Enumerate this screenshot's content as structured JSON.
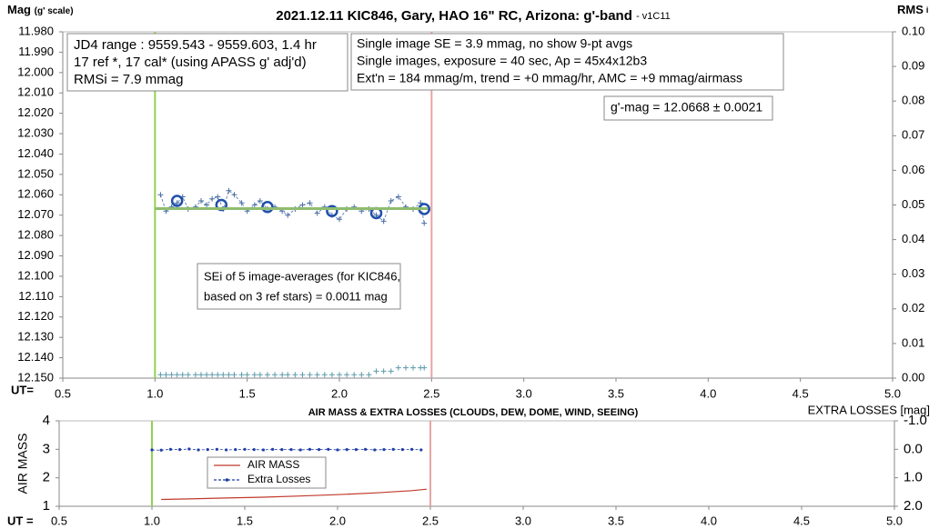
{
  "chart_data": [
    {
      "type": "line",
      "title": "2021.12.11 KIC846, Gary, HAO 16\" RC, Arizona: g'-band",
      "version": "- v1C11",
      "ylabel": "Mag",
      "ylabel_note": "(g' scale)",
      "y2label": "RMS",
      "y2label_sub": "i",
      "xlabel": "UT=",
      "xlim": [
        0.5,
        5.0
      ],
      "xticks": [
        0.5,
        {
          "value": 1.0,
          "label": "1.0"
        },
        1.5,
        {
          "value": 2.0,
          "label": "2.0"
        },
        2.5,
        {
          "value": 3.0,
          "label": "3.0"
        },
        3.5,
        {
          "value": 4.0,
          "label": "4.0"
        },
        4.5,
        {
          "value": 5.0,
          "label": "5.0"
        }
      ],
      "ylim": [
        12.15,
        11.98
      ],
      "yticks": [
        {
          "value": 11.98,
          "label": "11.980"
        },
        {
          "value": 11.99,
          "label": "11.990"
        },
        {
          "value": 12.0,
          "label": "12.000"
        },
        {
          "value": 12.01,
          "label": "12.010"
        },
        {
          "value": 12.02,
          "label": "12.020"
        },
        {
          "value": 12.03,
          "label": "12.030"
        },
        {
          "value": 12.04,
          "label": "12.040"
        },
        {
          "value": 12.05,
          "label": "12.050"
        },
        {
          "value": 12.06,
          "label": "12.060"
        },
        {
          "value": 12.07,
          "label": "12.070"
        },
        {
          "value": 12.08,
          "label": "12.080"
        },
        {
          "value": 12.09,
          "label": "12.090"
        },
        {
          "value": 12.1,
          "label": "12.100"
        },
        {
          "value": 12.11,
          "label": "12.110"
        },
        {
          "value": 12.12,
          "label": "12.120"
        },
        {
          "value": 12.13,
          "label": "12.130"
        },
        {
          "value": 12.14,
          "label": "12.140"
        },
        {
          "value": 12.15,
          "label": "12.150"
        }
      ],
      "y2lim": [
        0,
        0.1
      ],
      "y2ticks": [
        {
          "value": 0,
          "label": "0.00"
        },
        0.01,
        0.02,
        0.03,
        0.04,
        0.05,
        0.06,
        0.07,
        0.08,
        0.09,
        {
          "value": 0.1,
          "label": "0.10"
        }
      ],
      "vlines": [
        {
          "value": 1.0,
          "color": "#92d050"
        },
        {
          "value": 2.5,
          "color": "#e8a3a3"
        }
      ],
      "series": [
        {
          "marker": "plus",
          "line": "dashed",
          "color": "#4a6fa5",
          "x": [
            1.03,
            1.06,
            1.09,
            1.12,
            1.15,
            1.18,
            1.22,
            1.25,
            1.28,
            1.31,
            1.34,
            1.37,
            1.4,
            1.43,
            1.47,
            1.5,
            1.54,
            1.57,
            1.61,
            1.65,
            1.69,
            1.72,
            1.76,
            1.8,
            1.84,
            1.88,
            1.92,
            1.96,
            2.0,
            2.04,
            2.08,
            2.12,
            2.16,
            2.2,
            2.24,
            2.28,
            2.32,
            2.36,
            2.4,
            2.44,
            2.46
          ],
          "values": [
            12.06,
            12.068,
            12.066,
            12.064,
            12.061,
            12.067,
            12.066,
            12.063,
            12.065,
            12.062,
            12.061,
            12.067,
            12.058,
            12.06,
            12.064,
            12.068,
            12.065,
            12.063,
            12.067,
            12.066,
            12.068,
            12.07,
            12.067,
            12.065,
            12.064,
            12.069,
            12.066,
            12.07,
            12.072,
            12.067,
            12.066,
            12.068,
            12.067,
            12.07,
            12.073,
            12.063,
            12.061,
            12.066,
            12.067,
            12.064,
            12.074
          ]
        },
        {
          "marker": "circle",
          "color": "#1f4faa",
          "x": [
            1.12,
            1.36,
            1.61,
            1.96,
            2.2,
            2.46
          ],
          "values": [
            12.063,
            12.065,
            12.066,
            12.068,
            12.069,
            12.067
          ]
        },
        {
          "marker": "none",
          "line": "solid",
          "color": "#8fbc6f",
          "x": [
            1.0,
            2.48
          ],
          "values": [
            12.0668,
            12.0668
          ]
        },
        {
          "marker": "plus",
          "color": "#5b9aaa",
          "axis": "y2",
          "x": [
            1.03,
            1.06,
            1.09,
            1.12,
            1.15,
            1.18,
            1.22,
            1.25,
            1.28,
            1.31,
            1.34,
            1.37,
            1.4,
            1.43,
            1.47,
            1.5,
            1.54,
            1.57,
            1.61,
            1.65,
            1.69,
            1.72,
            1.76,
            1.8,
            1.84,
            1.88,
            1.92,
            1.96,
            2.0,
            2.04,
            2.08,
            2.12,
            2.16,
            2.2,
            2.24,
            2.28,
            2.32,
            2.36,
            2.4,
            2.44,
            2.46
          ],
          "values": [
            0.001,
            0.001,
            0.001,
            0.001,
            0.001,
            0.001,
            0.001,
            0.001,
            0.001,
            0.001,
            0.001,
            0.001,
            0.001,
            0.001,
            0.001,
            0.001,
            0.001,
            0.001,
            0.001,
            0.001,
            0.001,
            0.001,
            0.001,
            0.001,
            0.001,
            0.001,
            0.001,
            0.001,
            0.001,
            0.001,
            0.001,
            0.001,
            0.001,
            0.002,
            0.002,
            0.002,
            0.003,
            0.003,
            0.003,
            0.003,
            0.003
          ]
        }
      ],
      "annotations": [
        {
          "lines": [
            "JD4 range : 9559.543 - 9559.603,  1.4  hr",
            "17 ref *, 17 cal* (using APASS g' adj'd)",
            "RMSi = 7.9 mmag"
          ]
        },
        {
          "lines": [
            "Single image SE = 3.9 mmag, no show  9-pt avgs",
            "Single images, exposure = 40 sec, Ap = 45x4x12b3",
            "Ext'n = 184 mmag/m, trend = +0 mmag/hr, AMC = +9 mmag/airmass"
          ]
        },
        {
          "lines": [
            "g'-mag = 12.0668 ± 0.0021"
          ]
        },
        {
          "lines": [
            "SEi of 5 image-averages (for KIC846,",
            "based on 3 ref stars) = 0.0011 mag"
          ]
        }
      ]
    },
    {
      "type": "line",
      "title": "AIR MASS & EXTRA LOSSES (CLOUDS, DEW, DOME, WIND, SEEING)",
      "ylabel": "AIR MASS",
      "y2label": "EXTRA LOSSES [mag]",
      "xlabel": "UT =",
      "xlim": [
        0.5,
        5.0
      ],
      "xticks": [
        0.5,
        {
          "value": 1.0,
          "label": "1.0"
        },
        1.5,
        {
          "value": 2.0,
          "label": "2.0"
        },
        2.5,
        {
          "value": 3.0,
          "label": "3.0"
        },
        3.5,
        {
          "value": 4.0,
          "label": "4.0"
        },
        4.5,
        {
          "value": 5.0,
          "label": "5.0"
        }
      ],
      "ylim": [
        1,
        4
      ],
      "yticks": [
        1,
        2,
        3,
        4
      ],
      "y2lim": [
        2.0,
        -1.0
      ],
      "y2ticks": [
        {
          "value": -1.0,
          "label": "-1.0"
        },
        {
          "value": 0.0,
          "label": "0.0"
        },
        {
          "value": 1.0,
          "label": "1.0"
        },
        {
          "value": 2.0,
          "label": "2.0"
        }
      ],
      "vlines": [
        {
          "value": 1.0,
          "color": "#92d050"
        },
        {
          "value": 2.5,
          "color": "#e8a3a3"
        }
      ],
      "legend": true,
      "series": [
        {
          "name": "AIR MASS",
          "marker": "none",
          "line": "solid",
          "color": "#c0392b",
          "x": [
            1.05,
            1.2,
            1.4,
            1.6,
            1.8,
            2.0,
            2.2,
            2.4,
            2.48
          ],
          "values": [
            1.24,
            1.26,
            1.29,
            1.32,
            1.36,
            1.41,
            1.47,
            1.55,
            1.6
          ]
        },
        {
          "name": "Extra Losses",
          "marker": "dot",
          "line": "dashed",
          "color": "#1f3fa5",
          "axis": "y2",
          "x": [
            1.0,
            1.05,
            1.1,
            1.15,
            1.2,
            1.25,
            1.3,
            1.35,
            1.4,
            1.45,
            1.5,
            1.55,
            1.6,
            1.65,
            1.7,
            1.75,
            1.8,
            1.85,
            1.9,
            1.95,
            2.0,
            2.05,
            2.1,
            2.15,
            2.2,
            2.25,
            2.3,
            2.35,
            2.4,
            2.45
          ],
          "values": [
            0.02,
            0.03,
            0.0,
            0.01,
            -0.01,
            0.02,
            0.01,
            0.0,
            0.02,
            0.01,
            0.0,
            0.01,
            0.02,
            0.0,
            0.01,
            0.01,
            0.02,
            0.0,
            0.01,
            0.0,
            0.02,
            0.01,
            0.01,
            0.0,
            0.02,
            0.01,
            0.0,
            0.01,
            0.0,
            0.02
          ]
        }
      ]
    }
  ]
}
